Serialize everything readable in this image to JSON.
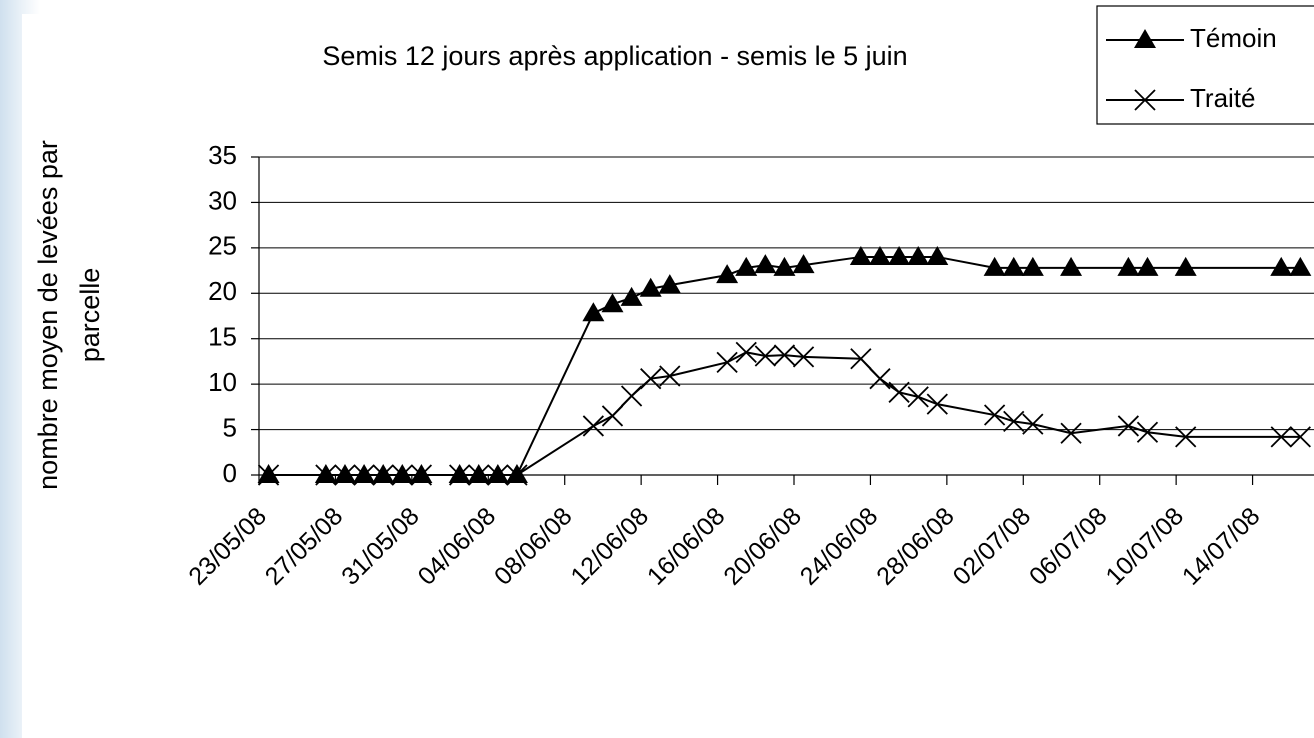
{
  "chart_data": {
    "type": "line",
    "title": "Semis 12 jours après application - semis le 5 juin",
    "ylabel": [
      "nombre moyen de levées par",
      "parcelle"
    ],
    "x": [
      "23/05/08",
      "26/05/08",
      "27/05/08",
      "28/05/08",
      "29/05/08",
      "30/05/08",
      "31/05/08",
      "02/06/08",
      "03/06/08",
      "04/06/08",
      "05/06/08",
      "09/06/08",
      "10/06/08",
      "11/06/08",
      "12/06/08",
      "13/06/08",
      "16/06/08",
      "17/06/08",
      "18/06/08",
      "19/06/08",
      "20/06/08",
      "23/06/08",
      "24/06/08",
      "25/06/08",
      "26/06/08",
      "27/06/08",
      "30/06/08",
      "01/07/08",
      "02/07/08",
      "04/07/08",
      "07/07/08",
      "08/07/08",
      "10/07/08",
      "15/07/08",
      "16/07/08"
    ],
    "series": [
      {
        "name": "Témoin",
        "color": "#000000",
        "marker": "triangle",
        "values": [
          0,
          0,
          0,
          0,
          0,
          0,
          0,
          0,
          0,
          0,
          0,
          17.8,
          18.8,
          19.5,
          20.5,
          20.9,
          22,
          22.8,
          23.1,
          22.8,
          23.1,
          24,
          24,
          24,
          24,
          24,
          22.8,
          22.8,
          22.8,
          22.8,
          22.8,
          22.8,
          22.8,
          22.8,
          22.8
        ]
      },
      {
        "name": "Traité",
        "color": "#000000",
        "marker": "x",
        "values": [
          0,
          0,
          0,
          0,
          0,
          0,
          0,
          0,
          0,
          0,
          0,
          5.4,
          6.5,
          8.7,
          10.6,
          10.9,
          12.4,
          13.5,
          13.1,
          13.2,
          13,
          12.8,
          10.6,
          9.1,
          8.6,
          7.8,
          6.6,
          5.9,
          5.6,
          4.6,
          5.4,
          4.7,
          4.2,
          4.2,
          4.2
        ]
      }
    ],
    "xlim": [
      "23/05/08",
      "18/07/08"
    ],
    "xticks": [
      "23/05/08",
      "27/05/08",
      "31/05/08",
      "04/06/08",
      "08/06/08",
      "12/06/08",
      "16/06/08",
      "20/06/08",
      "24/06/08",
      "28/06/08",
      "02/07/08",
      "06/07/08",
      "10/07/08",
      "14/07/08"
    ],
    "ylim": [
      0,
      35
    ],
    "yticks": [
      0,
      5,
      10,
      15,
      20,
      25,
      30,
      35
    ],
    "grid": true,
    "legend": "top-right"
  }
}
